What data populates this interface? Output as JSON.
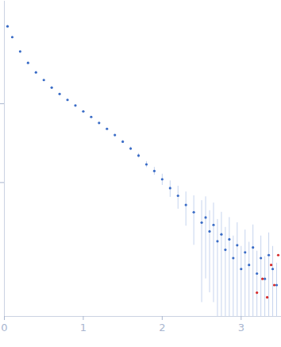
{
  "chart_data": {
    "type": "scatter",
    "xlim": [
      0,
      3.5
    ],
    "xticks": [
      0,
      1,
      2,
      3
    ],
    "ylim": [
      0.002,
      20
    ],
    "yticks": [
      0.1,
      1
    ],
    "log": "y",
    "tick_labels": "x",
    "grid": false,
    "series": [
      {
        "color": "#3a6cc6",
        "marker": "circle",
        "x": [
          0.04,
          0.1,
          0.2,
          0.3,
          0.4,
          0.5,
          0.6,
          0.7,
          0.8,
          0.9,
          1.0,
          1.1,
          1.2,
          1.3,
          1.4,
          1.5,
          1.6,
          1.7,
          1.8,
          1.9,
          2.0,
          2.1,
          2.2,
          2.3,
          2.4,
          2.5,
          2.55,
          2.6,
          2.65,
          2.7,
          2.75,
          2.8,
          2.85,
          2.9,
          2.95,
          3.0,
          3.05,
          3.1,
          3.15,
          3.2,
          3.25,
          3.3,
          3.35,
          3.4,
          3.45
        ],
        "values": [
          9.6,
          7.0,
          4.6,
          3.3,
          2.5,
          2.0,
          1.6,
          1.33,
          1.12,
          0.95,
          0.8,
          0.68,
          0.57,
          0.48,
          0.4,
          0.33,
          0.27,
          0.22,
          0.17,
          0.14,
          0.11,
          0.085,
          0.068,
          0.052,
          0.042,
          0.031,
          0.036,
          0.024,
          0.029,
          0.018,
          0.022,
          0.014,
          0.019,
          0.011,
          0.016,
          0.008,
          0.013,
          0.009,
          0.015,
          0.007,
          0.011,
          0.006,
          0.012,
          0.008,
          0.005
        ],
        "errors": [
          0.15,
          0.08,
          0.04,
          0.03,
          0.02,
          0.015,
          0.012,
          0.01,
          0.01,
          0.01,
          0.01,
          0.01,
          0.01,
          0.01,
          0.01,
          0.012,
          0.012,
          0.014,
          0.015,
          0.016,
          0.018,
          0.02,
          0.022,
          0.024,
          0.026,
          0.028,
          0.03,
          0.02,
          0.026,
          0.016,
          0.02,
          0.013,
          0.017,
          0.01,
          0.015,
          0.0075,
          0.012,
          0.0085,
          0.014,
          0.0065,
          0.01,
          0.0055,
          0.011,
          0.0075,
          0.0045
        ],
        "error_color": "#c6d4ee"
      },
      {
        "color": "#d62a2a",
        "marker": "circle",
        "x": [
          3.2,
          3.27,
          3.33,
          3.38,
          3.42,
          3.47
        ],
        "values": [
          0.004,
          0.006,
          0.0035,
          0.009,
          0.005,
          0.012
        ]
      }
    ]
  }
}
